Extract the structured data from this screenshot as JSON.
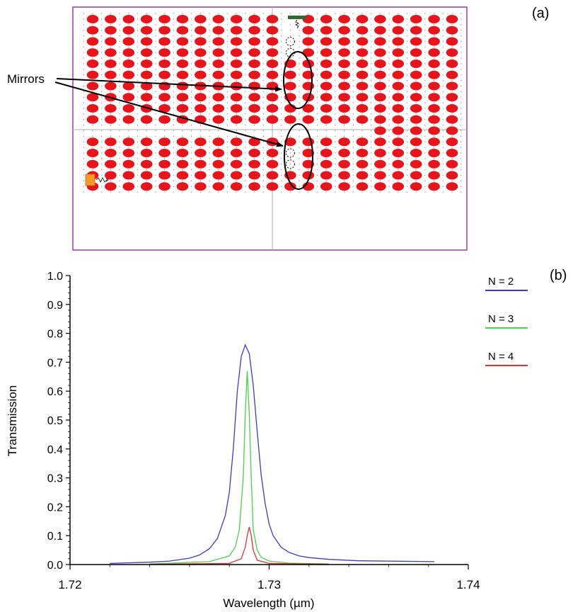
{
  "panel_a": {
    "label": "(a)",
    "annotation": "Mirrors",
    "colors": {
      "rod": "#e8141b",
      "frame": "#9b3ba6",
      "source": "#f39a2b",
      "monitor": "#2f6b2f"
    },
    "lattice": {
      "cols": 21,
      "rows": 16,
      "waveguide_row": 10,
      "cavity_col": 10
    },
    "removed_rods": [
      [
        11,
        2
      ],
      [
        11,
        3
      ],
      [
        11,
        12
      ],
      [
        11,
        13
      ]
    ]
  },
  "panel_b": {
    "label": "(b)",
    "chart_data": {
      "type": "line",
      "title": "",
      "xlabel": "Wavelength (µm)",
      "ylabel": "Transmission",
      "xlim": [
        1.72,
        1.74
      ],
      "ylim": [
        0.0,
        1.0
      ],
      "xticks": [
        "1.72",
        "1.73",
        "1.74"
      ],
      "yticks": [
        "0.0",
        "0.1",
        "0.2",
        "0.3",
        "0.4",
        "0.5",
        "0.6",
        "0.7",
        "0.8",
        "0.9",
        "1.0"
      ],
      "legend_position": "right",
      "series": [
        {
          "name": "N = 2",
          "color": "#3b3bc4",
          "x": [
            1.722,
            1.724,
            1.725,
            1.726,
            1.7265,
            1.727,
            1.7274,
            1.7278,
            1.728,
            1.7282,
            1.7284,
            1.7286,
            1.7288,
            1.729,
            1.7292,
            1.7294,
            1.7296,
            1.7298,
            1.73,
            1.7302,
            1.7306,
            1.731,
            1.7315,
            1.732,
            1.733,
            1.7345,
            1.7383
          ],
          "y": [
            0.004,
            0.008,
            0.012,
            0.022,
            0.033,
            0.055,
            0.09,
            0.17,
            0.25,
            0.4,
            0.6,
            0.72,
            0.76,
            0.73,
            0.62,
            0.46,
            0.31,
            0.21,
            0.14,
            0.1,
            0.06,
            0.042,
            0.03,
            0.024,
            0.018,
            0.013,
            0.01
          ]
        },
        {
          "name": "N = 3",
          "color": "#4bd04b",
          "x": [
            1.724,
            1.727,
            1.728,
            1.7283,
            1.7285,
            1.7287,
            1.7288,
            1.7289,
            1.729,
            1.7291,
            1.7292,
            1.7294,
            1.7296,
            1.73,
            1.731,
            1.733
          ],
          "y": [
            0.002,
            0.01,
            0.03,
            0.06,
            0.12,
            0.3,
            0.52,
            0.67,
            0.52,
            0.3,
            0.12,
            0.05,
            0.025,
            0.012,
            0.005,
            0.002
          ]
        },
        {
          "name": "N = 4",
          "color": "#e03030",
          "x": [
            1.724,
            1.728,
            1.7286,
            1.7288,
            1.7289,
            1.729,
            1.7291,
            1.7292,
            1.7294,
            1.73,
            1.733
          ],
          "y": [
            0.001,
            0.004,
            0.02,
            0.06,
            0.1,
            0.13,
            0.1,
            0.05,
            0.015,
            0.004,
            0.001
          ]
        }
      ]
    }
  }
}
